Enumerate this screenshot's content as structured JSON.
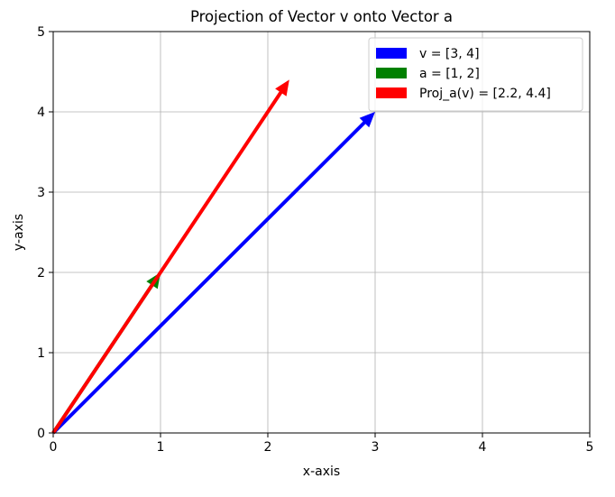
{
  "chart_data": {
    "type": "quiver",
    "title": "Projection of Vector v onto Vector a",
    "xlabel": "x-axis",
    "ylabel": "y-axis",
    "xlim": [
      0,
      5
    ],
    "ylim": [
      0,
      5
    ],
    "xticks": [
      "0",
      "1",
      "2",
      "3",
      "4",
      "5"
    ],
    "yticks": [
      "0",
      "1",
      "2",
      "3",
      "4",
      "5"
    ],
    "grid": true,
    "legend_position": "top-right",
    "series": [
      {
        "name": "v = [3, 4]",
        "origin": [
          0,
          0
        ],
        "vector": [
          3,
          4
        ],
        "color": "#0000ff"
      },
      {
        "name": "a = [1, 2]",
        "origin": [
          0,
          0
        ],
        "vector": [
          1,
          2
        ],
        "color": "#008000"
      },
      {
        "name": "Proj_a(v) = [2.2, 4.4]",
        "origin": [
          0,
          0
        ],
        "vector": [
          2.2,
          4.4
        ],
        "color": "#ff0000"
      }
    ]
  }
}
